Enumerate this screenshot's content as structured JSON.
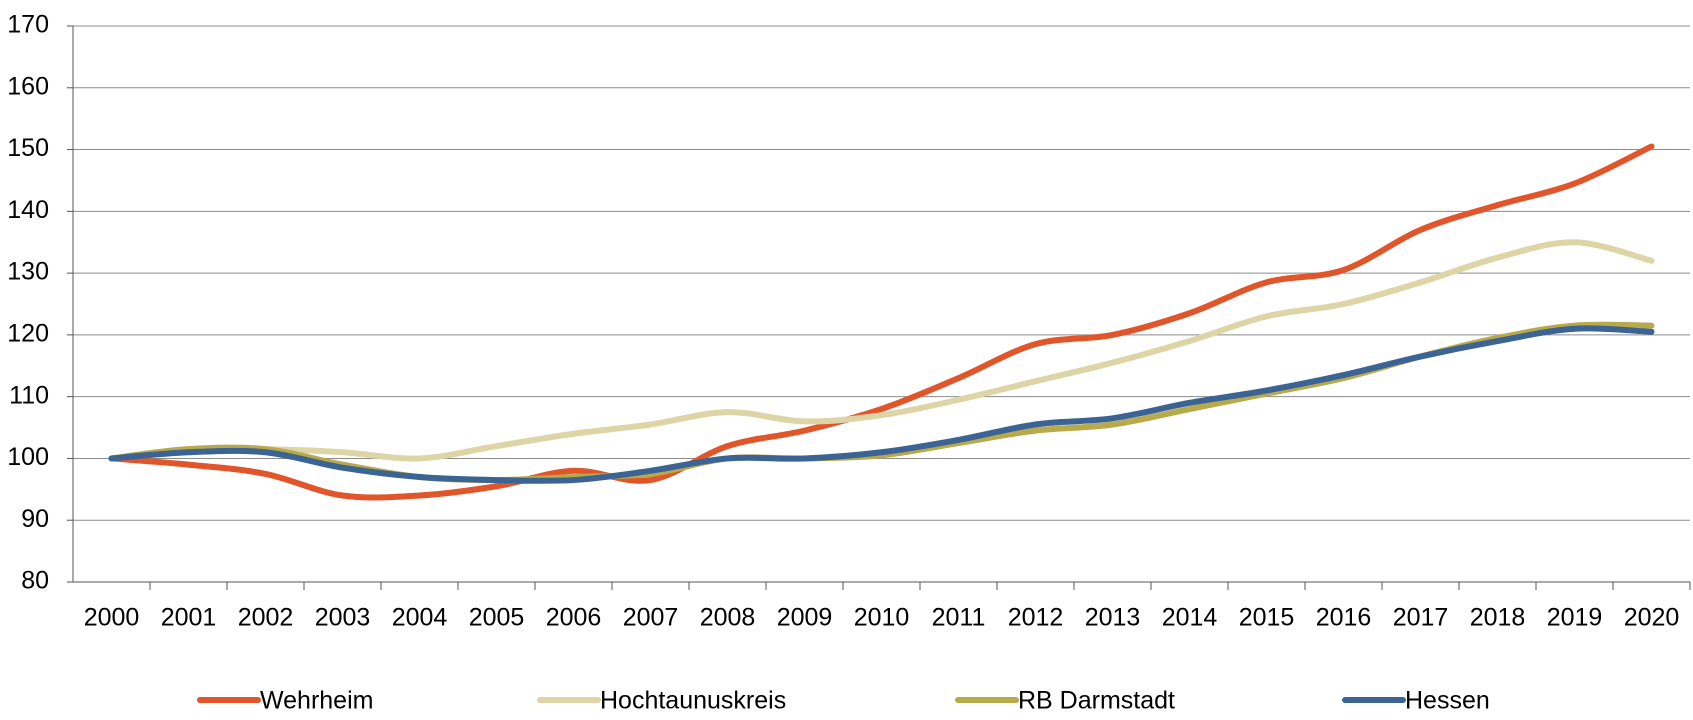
{
  "chart_data": {
    "type": "line",
    "categories": [
      "2000",
      "2001",
      "2002",
      "2003",
      "2004",
      "2005",
      "2006",
      "2007",
      "2008",
      "2009",
      "2010",
      "2011",
      "2012",
      "2013",
      "2014",
      "2015",
      "2016",
      "2017",
      "2018",
      "2019",
      "2020"
    ],
    "series": [
      {
        "name": "Wehrheim",
        "color": "#e0562a",
        "values": [
          100,
          99,
          97.5,
          94,
          94,
          95.5,
          98,
          96.5,
          102,
          104.5,
          108,
          113,
          118.5,
          120,
          123.5,
          128.5,
          130.5,
          137,
          141,
          144.5,
          150.5
        ]
      },
      {
        "name": "Hochtaunuskreis",
        "color": "#ddd5a5",
        "values": [
          100,
          101.5,
          101.5,
          101,
          100,
          102,
          104,
          105.5,
          107.5,
          106,
          107,
          109.5,
          112.5,
          115.5,
          119,
          123,
          125,
          128.5,
          132.5,
          135,
          132
        ]
      },
      {
        "name": "RB Darmstadt",
        "color": "#b8a94a",
        "values": [
          100,
          101.5,
          101.5,
          99,
          97,
          96.5,
          97,
          97.5,
          100,
          100,
          100.5,
          102.5,
          104.5,
          105.5,
          108,
          110.5,
          113,
          116.5,
          119.5,
          121.5,
          121.5
        ]
      },
      {
        "name": "Hessen",
        "color": "#3b6494",
        "values": [
          100,
          101,
          101,
          98.5,
          97,
          96.5,
          96.5,
          98,
          100,
          100,
          101,
          103,
          105.5,
          106.5,
          109,
          111,
          113.5,
          116.5,
          119,
          121,
          120.5
        ]
      }
    ],
    "ylim": [
      80,
      170
    ],
    "yticks": [
      80,
      90,
      100,
      110,
      120,
      130,
      140,
      150,
      160,
      170
    ],
    "grid": true,
    "legend": "bottom"
  }
}
